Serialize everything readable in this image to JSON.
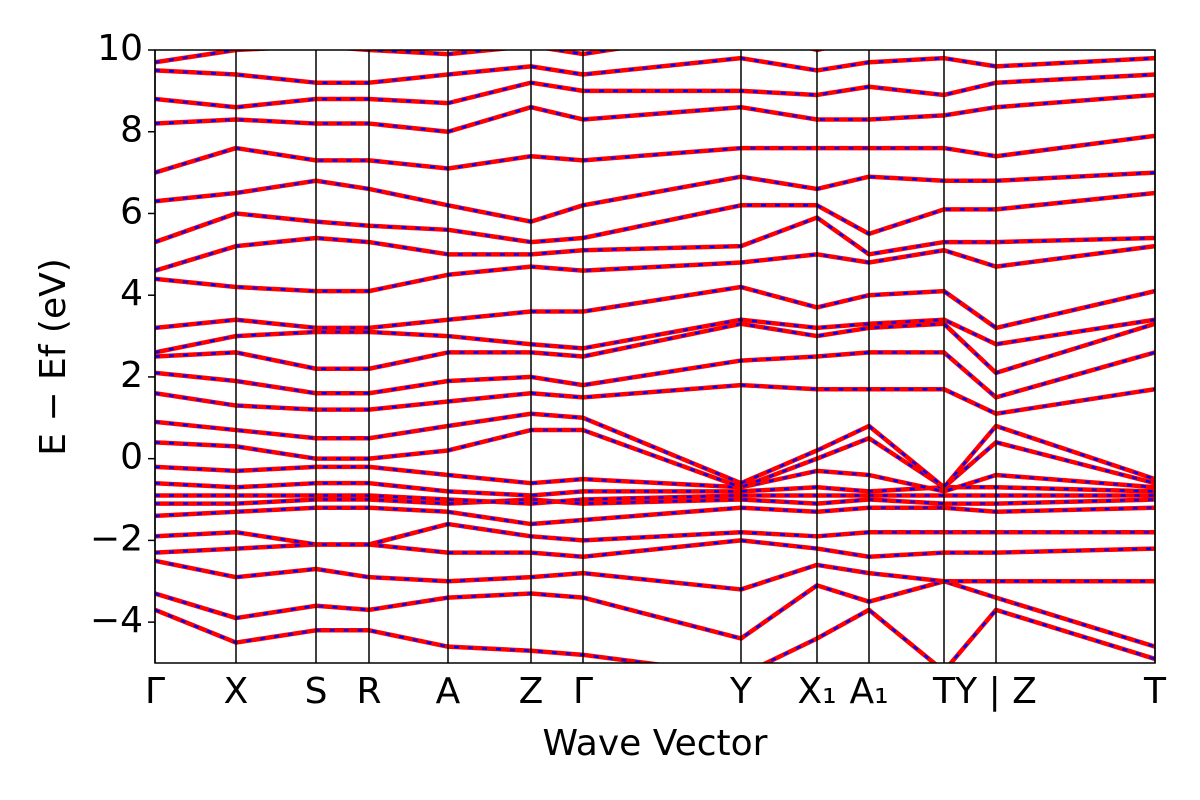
{
  "chart_data": {
    "type": "line",
    "xlabel": "Wave Vector",
    "ylabel": "E − Ef (eV)",
    "xlim": [
      0,
      1000
    ],
    "ylim": [
      -5,
      10
    ],
    "yticks": [
      {
        "value": -4,
        "label": "−4"
      },
      {
        "value": -2,
        "label": "−2"
      },
      0,
      2,
      4,
      6,
      8,
      10
    ],
    "xticks": [
      {
        "value": 0,
        "label": "Γ"
      },
      {
        "value": 81,
        "label": "X"
      },
      {
        "value": 161,
        "label": "S"
      },
      {
        "value": 214,
        "label": "R"
      },
      {
        "value": 293,
        "label": "A"
      },
      {
        "value": 376,
        "label": "Z"
      },
      {
        "value": 428,
        "label": "Γ"
      },
      {
        "value": 586,
        "label": "Y"
      },
      {
        "value": 662,
        "label": "X₁"
      },
      {
        "value": 714,
        "label": "A₁"
      },
      {
        "value": 789,
        "label": "T"
      },
      {
        "value": 841,
        "label": "Y | Z"
      },
      {
        "value": 1000,
        "label": "T"
      }
    ],
    "line_color": "#ff0000",
    "dash_color": "#0000ff",
    "series": [
      {
        "values": [
          -3.7,
          -4.5,
          -4.2,
          -4.2,
          -4.6,
          -4.7,
          -4.8,
          -5.3,
          -4.4,
          -3.7,
          -5.2,
          -3.7,
          -4.9
        ]
      },
      {
        "values": [
          -3.3,
          -3.9,
          -3.6,
          -3.7,
          -3.4,
          -3.3,
          -3.4,
          -4.4,
          -3.1,
          -3.5,
          -3.0,
          -3.4,
          -4.6
        ]
      },
      {
        "values": [
          -2.5,
          -2.9,
          -2.7,
          -2.9,
          -3.0,
          -2.9,
          -2.8,
          -3.2,
          -2.6,
          -2.8,
          -3.0,
          -3.0,
          -3.0
        ]
      },
      {
        "values": [
          -2.3,
          -2.2,
          -2.1,
          -2.1,
          -2.3,
          -2.3,
          -2.4,
          -2.0,
          -2.2,
          -2.4,
          -2.3,
          -2.3,
          -2.2
        ]
      },
      {
        "values": [
          -1.9,
          -1.8,
          -2.1,
          -2.1,
          -1.6,
          -1.9,
          -2.0,
          -1.8,
          -1.9,
          -1.8,
          -1.8,
          -1.8,
          -1.8
        ]
      },
      {
        "values": [
          -1.4,
          -1.3,
          -1.2,
          -1.2,
          -1.3,
          -1.6,
          -1.5,
          -1.2,
          -1.3,
          -1.2,
          -1.2,
          -1.3,
          -1.2
        ]
      },
      {
        "values": [
          -1.1,
          -1.1,
          -1.0,
          -1.0,
          -1.1,
          -1.0,
          -1.1,
          -1.0,
          -1.1,
          -1.0,
          -1.1,
          -1.1,
          -1.0
        ]
      },
      {
        "values": [
          -0.9,
          -0.9,
          -0.9,
          -0.9,
          -1.0,
          -1.1,
          -1.0,
          -0.9,
          -0.9,
          -0.9,
          -0.9,
          -0.9,
          -0.9
        ]
      },
      {
        "values": [
          -0.6,
          -0.7,
          -0.6,
          -0.6,
          -0.8,
          -0.9,
          -0.8,
          -0.8,
          -0.7,
          -0.8,
          -0.7,
          -0.7,
          -0.8
        ]
      },
      {
        "values": [
          -0.2,
          -0.3,
          -0.2,
          -0.2,
          -0.4,
          -0.6,
          -0.5,
          -0.7,
          -0.3,
          -0.4,
          -0.8,
          -0.4,
          -0.7
        ]
      },
      {
        "values": [
          0.4,
          0.3,
          0.0,
          0.0,
          0.2,
          0.7,
          0.7,
          -0.7,
          0.0,
          0.5,
          -0.7,
          0.4,
          -0.6
        ]
      },
      {
        "values": [
          0.9,
          0.7,
          0.5,
          0.5,
          0.8,
          1.1,
          1.0,
          -0.6,
          0.2,
          0.8,
          -0.7,
          0.8,
          -0.5
        ]
      },
      {
        "values": [
          1.6,
          1.3,
          1.2,
          1.2,
          1.4,
          1.6,
          1.5,
          1.8,
          1.7,
          1.7,
          1.7,
          1.1,
          1.7
        ]
      },
      {
        "values": [
          2.1,
          1.9,
          1.6,
          1.6,
          1.9,
          2.0,
          1.8,
          2.4,
          2.5,
          2.6,
          2.6,
          1.5,
          2.6
        ]
      },
      {
        "values": [
          2.5,
          2.6,
          2.2,
          2.2,
          2.6,
          2.6,
          2.5,
          3.3,
          3.0,
          3.2,
          3.3,
          2.1,
          3.3
        ]
      },
      {
        "values": [
          2.6,
          3.0,
          3.1,
          3.1,
          3.0,
          2.8,
          2.7,
          3.4,
          3.2,
          3.3,
          3.4,
          2.8,
          3.4
        ]
      },
      {
        "values": [
          3.2,
          3.4,
          3.2,
          3.2,
          3.4,
          3.6,
          3.6,
          4.2,
          3.7,
          4.0,
          4.1,
          3.2,
          4.1
        ]
      },
      {
        "values": [
          4.4,
          4.2,
          4.1,
          4.1,
          4.5,
          4.7,
          4.6,
          4.8,
          5.0,
          4.8,
          5.1,
          4.7,
          5.2
        ]
      },
      {
        "values": [
          4.6,
          5.2,
          5.4,
          5.3,
          5.0,
          5.0,
          5.1,
          5.2,
          5.9,
          5.0,
          5.3,
          5.3,
          5.4
        ]
      },
      {
        "values": [
          5.3,
          6.0,
          5.8,
          5.7,
          5.6,
          5.3,
          5.4,
          6.2,
          6.2,
          5.5,
          6.1,
          6.1,
          6.5
        ]
      },
      {
        "values": [
          6.3,
          6.5,
          6.8,
          6.6,
          6.2,
          5.8,
          6.2,
          6.9,
          6.6,
          6.9,
          6.8,
          6.8,
          7.0
        ]
      },
      {
        "values": [
          7.0,
          7.6,
          7.3,
          7.3,
          7.1,
          7.4,
          7.3,
          7.6,
          7.6,
          7.6,
          7.6,
          7.4,
          7.9
        ]
      },
      {
        "values": [
          8.2,
          8.3,
          8.2,
          8.2,
          8.0,
          8.6,
          8.3,
          8.6,
          8.3,
          8.3,
          8.4,
          8.6,
          8.9
        ]
      },
      {
        "values": [
          8.8,
          8.6,
          8.8,
          8.8,
          8.7,
          9.2,
          9.0,
          9.0,
          8.9,
          9.1,
          8.9,
          9.2,
          9.4
        ]
      },
      {
        "values": [
          9.5,
          9.4,
          9.2,
          9.2,
          9.4,
          9.6,
          9.4,
          9.8,
          9.5,
          9.7,
          9.8,
          9.6,
          9.8
        ]
      },
      {
        "values": [
          9.7,
          10.0,
          10.1,
          10.0,
          9.9,
          10.1,
          9.9,
          10.5,
          10.0,
          10.3,
          10.5,
          10.1,
          10.5
        ]
      }
    ]
  }
}
